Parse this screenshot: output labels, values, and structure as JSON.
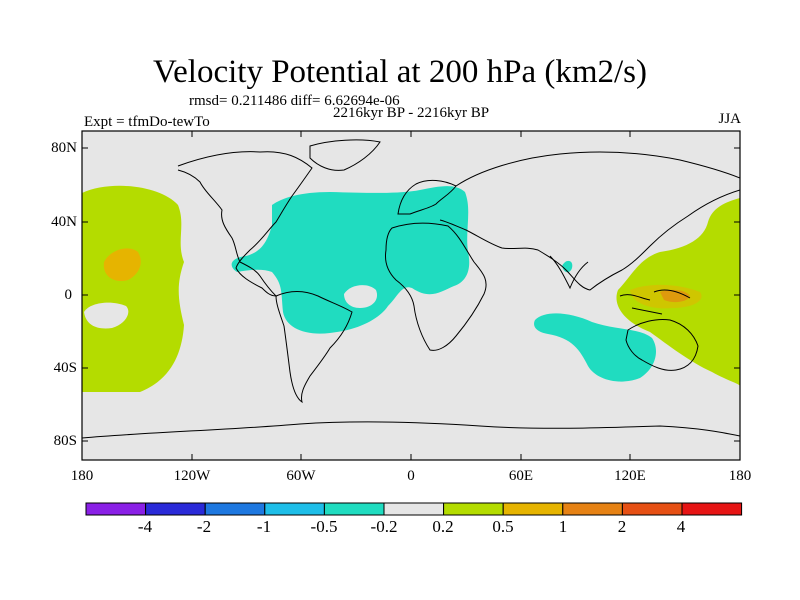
{
  "title": "Velocity Potential at 200 hPa (km2/s)",
  "stats": "rmsd= 0.211486 diff= 6.62694e-06",
  "period": "2216kyr BP - 2216kyr BP",
  "experiment": "Expt = tfmDo-tewTo",
  "season": "JJA",
  "lat_labels": [
    "80N",
    "40N",
    "0",
    "40S",
    "80S"
  ],
  "lon_labels": [
    "180",
    "120W",
    "60W",
    "0",
    "60E",
    "120E",
    "180"
  ],
  "colorbar": {
    "colors": [
      "#8a20e6",
      "#2a2ad8",
      "#1e78e0",
      "#1ebee8",
      "#20dcc0",
      "#e6e6e6",
      "#b4dc00",
      "#e6b400",
      "#e68214",
      "#e65014",
      "#e61414"
    ],
    "labels": [
      "-4",
      "-2",
      "-1",
      "-0.5",
      "-0.2",
      "0.2",
      "0.5",
      "1",
      "2",
      "4"
    ]
  },
  "colors": {
    "ocean_bg": "#e6e6e6",
    "negative_fill": "#20dcc0",
    "positive_fill": "#b4dc00",
    "strong_positive": "#e6b400",
    "peak_positive": "#e68214"
  }
}
